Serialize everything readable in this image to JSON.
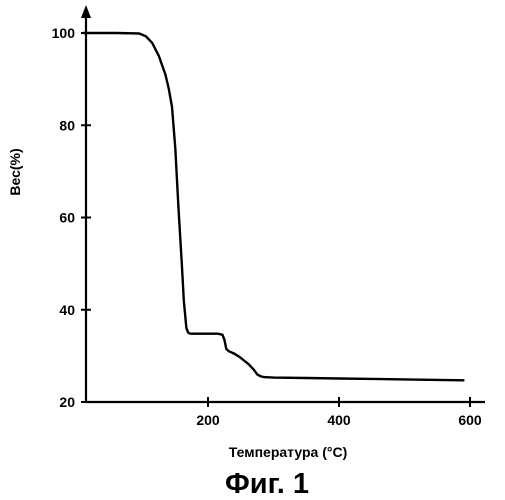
{
  "chart_data": {
    "type": "line",
    "title": "",
    "xlabel": "Температура (°C)",
    "ylabel": "Вес(%)",
    "xlim": [
      0,
      600
    ],
    "ylim": [
      20,
      100
    ],
    "grid": false,
    "x_ticks": [
      200,
      400,
      600
    ],
    "y_ticks": [
      20,
      40,
      60,
      80,
      100
    ],
    "x_tick_labels": [
      "200",
      "400",
      "600"
    ],
    "y_tick_labels": [
      "20",
      "40",
      "60",
      "80",
      "100"
    ],
    "series": [
      {
        "x": [
          10,
          60,
          95,
          105,
          115,
          125,
          135,
          140,
          145,
          150,
          155,
          160,
          163,
          167,
          170,
          173,
          180,
          200,
          215,
          222,
          225,
          228,
          232,
          240,
          248,
          255,
          262,
          270,
          275,
          280,
          285,
          300,
          350,
          400,
          450,
          500,
          550,
          590
        ],
        "y": [
          100,
          100,
          99.9,
          99.3,
          97.8,
          95,
          91,
          88,
          84,
          75,
          62,
          50,
          42,
          36,
          35,
          34.8,
          34.8,
          34.8,
          34.8,
          34.6,
          33.5,
          31.5,
          31,
          30.5,
          29.8,
          29,
          28.2,
          27,
          26,
          25.6,
          25.4,
          25.3,
          25.2,
          25.1,
          25.0,
          24.9,
          24.8,
          24.7
        ]
      }
    ]
  },
  "caption": "Фиг. 1"
}
